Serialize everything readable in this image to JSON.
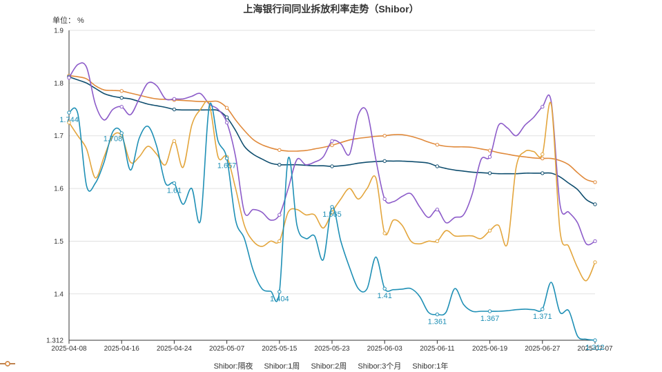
{
  "chart_data": {
    "type": "line",
    "title": "上海银行间同业拆放利率走势（Shibor）",
    "ylabel": "单位： %",
    "ylim": [
      1.312,
      1.9
    ],
    "y_ticks": [
      "1.312",
      "1.4",
      "1.5",
      "1.6",
      "1.7",
      "1.8",
      "1.9"
    ],
    "x_tick_labels": [
      "2025-04-08",
      "2025-04-16",
      "2025-04-24",
      "2025-05-07",
      "2025-05-15",
      "2025-05-23",
      "2025-06-03",
      "2025-06-11",
      "2025-06-19",
      "2025-06-27",
      "2025-07-07"
    ],
    "x_tick_index": [
      0,
      6,
      12,
      18,
      24,
      30,
      36,
      42,
      48,
      54,
      60
    ],
    "x": [
      "2025-04-08",
      "2025-04-09",
      "2025-04-10",
      "2025-04-11",
      "2025-04-14",
      "2025-04-15",
      "2025-04-16",
      "2025-04-17",
      "2025-04-18",
      "2025-04-21",
      "2025-04-22",
      "2025-04-23",
      "2025-04-24",
      "2025-04-25",
      "2025-04-27",
      "2025-04-28",
      "2025-04-29",
      "2025-04-30",
      "2025-05-07",
      "2025-05-08",
      "2025-05-09",
      "2025-05-12",
      "2025-05-13",
      "2025-05-14",
      "2025-05-15",
      "2025-05-16",
      "2025-05-19",
      "2025-05-20",
      "2025-05-21",
      "2025-05-22",
      "2025-05-23",
      "2025-05-26",
      "2025-05-27",
      "2025-05-28",
      "2025-05-29",
      "2025-05-30",
      "2025-06-03",
      "2025-06-04",
      "2025-06-05",
      "2025-06-06",
      "2025-06-09",
      "2025-06-10",
      "2025-06-11",
      "2025-06-12",
      "2025-06-13",
      "2025-06-16",
      "2025-06-17",
      "2025-06-18",
      "2025-06-19",
      "2025-06-20",
      "2025-06-23",
      "2025-06-24",
      "2025-06-25",
      "2025-06-26",
      "2025-06-27",
      "2025-06-30",
      "2025-07-01",
      "2025-07-02",
      "2025-07-03",
      "2025-07-04",
      "2025-07-07"
    ],
    "series": [
      {
        "name": "Shibor:隔夜",
        "color": "#1e8fb5",
        "values": [
          1.744,
          1.742,
          1.605,
          1.61,
          1.65,
          1.708,
          1.705,
          1.635,
          1.695,
          1.718,
          1.68,
          1.61,
          1.61,
          1.57,
          1.6,
          1.54,
          1.757,
          1.69,
          1.657,
          1.54,
          1.505,
          1.445,
          1.41,
          1.405,
          1.404,
          1.657,
          1.53,
          1.505,
          1.51,
          1.465,
          1.565,
          1.5,
          1.45,
          1.41,
          1.41,
          1.47,
          1.41,
          1.408,
          1.409,
          1.41,
          1.395,
          1.365,
          1.361,
          1.365,
          1.41,
          1.38,
          1.367,
          1.367,
          1.367,
          1.367,
          1.368,
          1.37,
          1.371,
          1.37,
          1.371,
          1.422,
          1.365,
          1.368,
          1.32,
          1.314,
          1.312
        ],
        "point_labels": {
          "0": "1.744",
          "5": "1.708",
          "12": "1.61",
          "18": "1.657",
          "24": "1.404",
          "30": "1.565",
          "36": "1.41",
          "42": "1.361",
          "48": "1.367",
          "54": "1.371",
          "60": "1.312"
        }
      },
      {
        "name": "Shibor:1周",
        "color": "#e3a53c",
        "values": [
          1.725,
          1.7,
          1.675,
          1.62,
          1.66,
          1.7,
          1.7,
          1.65,
          1.66,
          1.68,
          1.665,
          1.645,
          1.69,
          1.64,
          1.72,
          1.75,
          1.76,
          1.66,
          1.66,
          1.6,
          1.53,
          1.5,
          1.49,
          1.5,
          1.5,
          1.555,
          1.56,
          1.55,
          1.55,
          1.525,
          1.555,
          1.58,
          1.6,
          1.58,
          1.6,
          1.62,
          1.515,
          1.54,
          1.53,
          1.5,
          1.495,
          1.5,
          1.5,
          1.52,
          1.51,
          1.51,
          1.51,
          1.505,
          1.52,
          1.53,
          1.495,
          1.64,
          1.67,
          1.67,
          1.665,
          1.76,
          1.52,
          1.49,
          1.45,
          1.425,
          1.46
        ],
        "point_labels": {}
      },
      {
        "name": "Shibor:2周",
        "color": "#8c5bc9",
        "values": [
          1.81,
          1.835,
          1.83,
          1.76,
          1.73,
          1.75,
          1.755,
          1.74,
          1.77,
          1.8,
          1.795,
          1.77,
          1.77,
          1.77,
          1.775,
          1.78,
          1.76,
          1.75,
          1.725,
          1.66,
          1.555,
          1.56,
          1.555,
          1.54,
          1.55,
          1.6,
          1.655,
          1.645,
          1.65,
          1.66,
          1.69,
          1.685,
          1.665,
          1.74,
          1.745,
          1.655,
          1.58,
          1.575,
          1.585,
          1.59,
          1.565,
          1.545,
          1.56,
          1.535,
          1.545,
          1.55,
          1.59,
          1.655,
          1.66,
          1.72,
          1.715,
          1.7,
          1.72,
          1.735,
          1.755,
          1.765,
          1.57,
          1.555,
          1.535,
          1.495,
          1.5
        ],
        "point_labels": {}
      },
      {
        "name": "Shibor:3个月",
        "color": "#0e4d6e",
        "values": [
          1.812,
          1.806,
          1.8,
          1.79,
          1.78,
          1.775,
          1.772,
          1.77,
          1.765,
          1.76,
          1.757,
          1.754,
          1.75,
          1.749,
          1.749,
          1.749,
          1.749,
          1.748,
          1.735,
          1.71,
          1.68,
          1.665,
          1.656,
          1.648,
          1.645,
          1.645,
          1.645,
          1.644,
          1.643,
          1.643,
          1.642,
          1.643,
          1.645,
          1.648,
          1.65,
          1.651,
          1.652,
          1.652,
          1.652,
          1.651,
          1.65,
          1.648,
          1.642,
          1.638,
          1.635,
          1.633,
          1.631,
          1.63,
          1.629,
          1.628,
          1.628,
          1.628,
          1.629,
          1.629,
          1.629,
          1.629,
          1.622,
          1.61,
          1.598,
          1.579,
          1.57
        ],
        "point_labels": {}
      },
      {
        "name": "Shibor:1年",
        "color": "#e0893a",
        "values": [
          1.814,
          1.812,
          1.808,
          1.795,
          1.787,
          1.786,
          1.785,
          1.781,
          1.777,
          1.773,
          1.77,
          1.769,
          1.768,
          1.767,
          1.766,
          1.765,
          1.765,
          1.765,
          1.753,
          1.73,
          1.71,
          1.693,
          1.683,
          1.677,
          1.673,
          1.671,
          1.671,
          1.672,
          1.675,
          1.678,
          1.682,
          1.687,
          1.692,
          1.695,
          1.697,
          1.699,
          1.7,
          1.702,
          1.702,
          1.699,
          1.694,
          1.688,
          1.683,
          1.68,
          1.679,
          1.679,
          1.678,
          1.675,
          1.672,
          1.668,
          1.665,
          1.662,
          1.66,
          1.658,
          1.657,
          1.657,
          1.653,
          1.645,
          1.63,
          1.617,
          1.612
        ],
        "point_labels": {}
      }
    ],
    "grid": true,
    "legend_position": "bottom-center"
  }
}
